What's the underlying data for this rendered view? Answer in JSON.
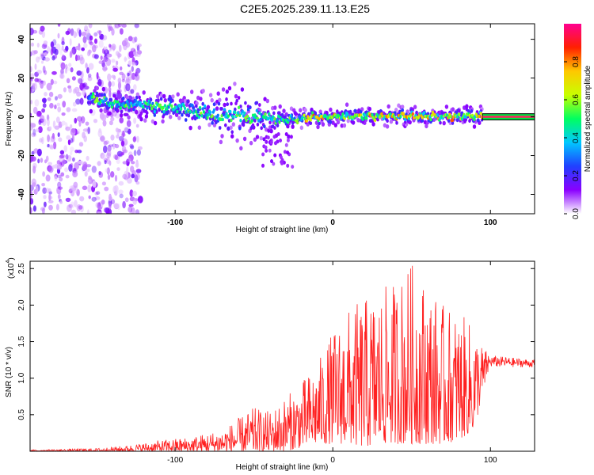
{
  "title": "C2E5.2025.239.11.13.E25",
  "chart_data": [
    {
      "type": "heatmap",
      "name": "spectrogram",
      "xlabel": "Height of straight line (km)",
      "ylabel": "Frequency (Hz)",
      "xlim": [
        -192,
        128
      ],
      "ylim": [
        -50,
        48
      ],
      "xticks": [
        -100,
        0,
        100
      ],
      "xtick_labels": [
        "-100",
        "0",
        "100"
      ],
      "yticks": [
        -40,
        -20,
        0,
        20,
        40
      ],
      "ytick_labels": [
        "-40",
        "-20",
        "0",
        "20",
        "40"
      ],
      "colorbar": {
        "label": "Normalized spectral amplitude",
        "range": [
          0,
          1
        ],
        "ticks": [
          0.0,
          0.2,
          0.4,
          0.6,
          0.8
        ],
        "tick_labels": [
          "0.0",
          "0.2",
          "0.4",
          "0.6",
          "0.8"
        ],
        "colors": [
          "#ffffff",
          "#8a00ff",
          "#2040ff",
          "#00c8ff",
          "#00ff60",
          "#c8ff00",
          "#ffc800",
          "#ff2000",
          "#ff0090"
        ]
      },
      "ridge": {
        "x": [
          -155,
          -140,
          -130,
          -120,
          -110,
          -100,
          -90,
          -80,
          -70,
          -60,
          -50,
          -40,
          -30,
          -20,
          -10,
          0,
          10,
          20,
          30,
          40,
          50,
          60,
          70,
          80,
          90,
          95
        ],
        "center_hz": [
          10,
          7,
          6,
          6,
          5,
          5,
          3,
          2,
          1,
          1,
          0,
          -1,
          -2,
          -1,
          0,
          0,
          0.5,
          0.5,
          0.3,
          0.5,
          0.3,
          0.3,
          0.2,
          0.3,
          0.5,
          0.5
        ],
        "band_hz": [
          4,
          4,
          4,
          5,
          5,
          5,
          6,
          7,
          9,
          10,
          9,
          6,
          4,
          3,
          3,
          3,
          3,
          3,
          3,
          3,
          3,
          3,
          3,
          3,
          3,
          3
        ]
      },
      "tone": {
        "x": [
          95,
          128
        ],
        "frequency_hz": 0
      }
    },
    {
      "type": "line",
      "name": "snr",
      "xlabel": "Height of straight line (km)",
      "ylabel": "SNR (10 * v/v)",
      "multiplier_label": "(x10",
      "multiplier_exp": "4",
      "multiplier_close": ")",
      "xlim": [
        -192,
        128
      ],
      "ylim": [
        0,
        2.6
      ],
      "xticks": [
        -100,
        0,
        100
      ],
      "xtick_labels": [
        "-100",
        "0",
        "100"
      ],
      "yticks": [
        0.5,
        1.0,
        1.5,
        2.0,
        2.5
      ],
      "ytick_labels": [
        "0.5",
        "1.0",
        "1.5",
        "2.0",
        "2.5"
      ],
      "color": "#ff2020",
      "envelope": {
        "x": [
          -192,
          -150,
          -130,
          -110,
          -90,
          -80,
          -70,
          -60,
          -50,
          -40,
          -30,
          -20,
          -10,
          0,
          10,
          20,
          30,
          40,
          50,
          60,
          70,
          80,
          90,
          95,
          100,
          105,
          128
        ],
        "max": [
          0.02,
          0.04,
          0.08,
          0.15,
          0.2,
          0.25,
          0.3,
          0.45,
          0.6,
          0.55,
          0.75,
          0.95,
          1.2,
          1.65,
          1.95,
          2.1,
          2.2,
          2.35,
          2.6,
          2.3,
          2.0,
          1.9,
          1.7,
          1.45,
          1.3,
          1.3,
          1.25
        ],
        "min": [
          0.0,
          0.0,
          0.0,
          0.0,
          0.0,
          0.0,
          0.0,
          0.0,
          0.0,
          0.0,
          0.0,
          0.05,
          0.1,
          0.1,
          0.1,
          0.05,
          0.1,
          0.1,
          0.1,
          0.1,
          0.1,
          0.15,
          0.3,
          0.8,
          1.15,
          1.15,
          1.15
        ]
      }
    }
  ]
}
